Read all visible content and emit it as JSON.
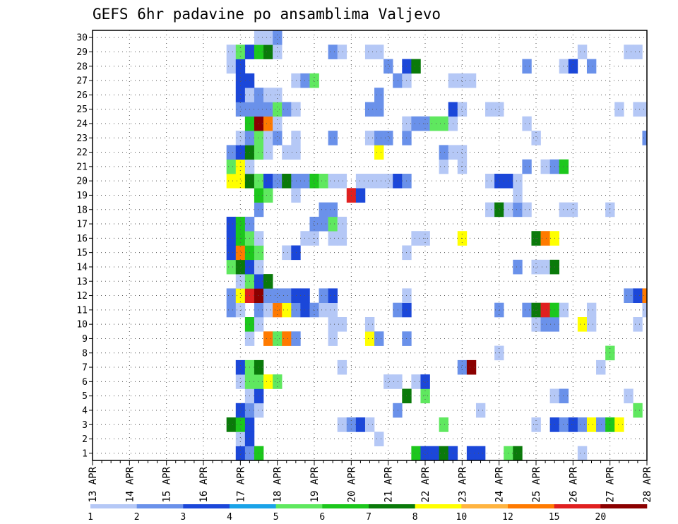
{
  "chart_data": {
    "type": "heatmap",
    "title": "GEFS 6hr padavine po ansamblima Valjevo",
    "x_tick_labels": [
      "13 APR",
      "14 APR",
      "15 APR",
      "16 APR",
      "17 APR",
      "18 APR",
      "19 APR",
      "20 APR",
      "21 APR",
      "22 APR",
      "23 APR",
      "24 APR",
      "25 APR",
      "26 APR",
      "27 APR",
      "28 APR"
    ],
    "y_tick_labels": [
      "1",
      "2",
      "3",
      "4",
      "5",
      "6",
      "7",
      "8",
      "9",
      "10",
      "11",
      "12",
      "13",
      "14",
      "15",
      "16",
      "17",
      "18",
      "19",
      "20",
      "21",
      "22",
      "23",
      "24",
      "25",
      "26",
      "27",
      "28",
      "29",
      "30"
    ],
    "x_range_steps": [
      0,
      60
    ],
    "y_range_members": [
      0.5,
      30.5
    ],
    "grid": "dotted",
    "colorbar": {
      "labels": [
        "1",
        "2",
        "3",
        "4",
        "5",
        "6",
        "7",
        "8",
        "10",
        "12",
        "15",
        "20"
      ],
      "colors": [
        "#b5c8f6",
        "#6a91ea",
        "#1b47d9",
        "#1aa3e8",
        "#5fe85f",
        "#1cc71c",
        "#0a7a0a",
        "#ffff00",
        "#ffb440",
        "#ff7a00",
        "#e02020",
        "#8b0000"
      ]
    },
    "cells": [
      [
        16,
        1,
        3
      ],
      [
        17,
        1,
        2
      ],
      [
        18,
        1,
        6
      ],
      [
        35,
        1,
        6
      ],
      [
        36,
        1,
        3
      ],
      [
        37,
        1,
        3
      ],
      [
        38,
        1,
        7
      ],
      [
        39,
        1,
        3
      ],
      [
        41,
        1,
        3
      ],
      [
        42,
        1,
        3
      ],
      [
        45,
        1,
        5
      ],
      [
        46,
        1,
        7
      ],
      [
        53,
        1,
        1
      ],
      [
        16,
        2,
        1
      ],
      [
        17,
        2,
        3
      ],
      [
        31,
        2,
        1
      ],
      [
        15,
        3,
        7
      ],
      [
        16,
        3,
        6
      ],
      [
        17,
        3,
        3
      ],
      [
        27,
        3,
        1
      ],
      [
        28,
        3,
        2
      ],
      [
        29,
        3,
        3
      ],
      [
        30,
        3,
        1
      ],
      [
        38,
        3,
        5
      ],
      [
        48,
        3,
        1
      ],
      [
        50,
        3,
        3
      ],
      [
        51,
        3,
        2
      ],
      [
        52,
        3,
        3
      ],
      [
        53,
        3,
        2
      ],
      [
        54,
        3,
        8
      ],
      [
        55,
        3,
        2
      ],
      [
        56,
        3,
        6
      ],
      [
        57,
        3,
        8
      ],
      [
        16,
        4,
        3
      ],
      [
        17,
        4,
        2
      ],
      [
        18,
        4,
        1
      ],
      [
        33,
        4,
        2
      ],
      [
        42,
        4,
        1
      ],
      [
        59,
        4,
        5
      ],
      [
        17,
        5,
        1
      ],
      [
        18,
        5,
        3
      ],
      [
        34,
        5,
        7
      ],
      [
        36,
        5,
        5
      ],
      [
        50,
        5,
        1
      ],
      [
        51,
        5,
        2
      ],
      [
        58,
        5,
        1
      ],
      [
        16,
        6,
        1
      ],
      [
        17,
        6,
        5
      ],
      [
        18,
        6,
        5
      ],
      [
        19,
        6,
        8
      ],
      [
        20,
        6,
        5
      ],
      [
        32,
        6,
        1
      ],
      [
        33,
        6,
        1
      ],
      [
        35,
        6,
        1
      ],
      [
        36,
        6,
        3
      ],
      [
        16,
        7,
        3
      ],
      [
        17,
        7,
        5
      ],
      [
        18,
        7,
        7
      ],
      [
        27,
        7,
        1
      ],
      [
        40,
        7,
        2
      ],
      [
        41,
        7,
        12
      ],
      [
        55,
        7,
        1
      ],
      [
        44,
        8,
        1
      ],
      [
        56,
        8,
        5
      ],
      [
        17,
        9,
        1
      ],
      [
        19,
        9,
        10
      ],
      [
        20,
        9,
        5
      ],
      [
        21,
        9,
        10
      ],
      [
        22,
        9,
        2
      ],
      [
        26,
        9,
        1
      ],
      [
        30,
        9,
        8
      ],
      [
        31,
        9,
        2
      ],
      [
        34,
        9,
        2
      ],
      [
        17,
        10,
        6
      ],
      [
        18,
        10,
        1
      ],
      [
        26,
        10,
        1
      ],
      [
        27,
        10,
        1
      ],
      [
        30,
        10,
        1
      ],
      [
        48,
        10,
        1
      ],
      [
        49,
        10,
        2
      ],
      [
        50,
        10,
        2
      ],
      [
        53,
        10,
        8
      ],
      [
        54,
        10,
        1
      ],
      [
        59,
        10,
        1
      ],
      [
        15,
        11,
        2
      ],
      [
        16,
        11,
        1
      ],
      [
        18,
        11,
        2
      ],
      [
        19,
        11,
        1
      ],
      [
        20,
        11,
        10
      ],
      [
        21,
        11,
        8
      ],
      [
        22,
        11,
        2
      ],
      [
        23,
        11,
        3
      ],
      [
        24,
        11,
        2
      ],
      [
        25,
        11,
        1
      ],
      [
        26,
        11,
        1
      ],
      [
        33,
        11,
        2
      ],
      [
        34,
        11,
        3
      ],
      [
        44,
        11,
        2
      ],
      [
        47,
        11,
        2
      ],
      [
        48,
        11,
        7
      ],
      [
        49,
        11,
        11
      ],
      [
        50,
        11,
        6
      ],
      [
        51,
        11,
        1
      ],
      [
        54,
        11,
        1
      ],
      [
        60,
        11,
        1
      ],
      [
        15,
        12,
        2
      ],
      [
        16,
        12,
        8
      ],
      [
        17,
        12,
        11
      ],
      [
        18,
        12,
        12
      ],
      [
        19,
        12,
        2
      ],
      [
        20,
        12,
        2
      ],
      [
        21,
        12,
        2
      ],
      [
        22,
        12,
        3
      ],
      [
        23,
        12,
        3
      ],
      [
        25,
        12,
        2
      ],
      [
        26,
        12,
        3
      ],
      [
        34,
        12,
        1
      ],
      [
        58,
        12,
        2
      ],
      [
        59,
        12,
        3
      ],
      [
        60,
        12,
        10
      ],
      [
        16,
        13,
        1
      ],
      [
        17,
        13,
        5
      ],
      [
        18,
        13,
        3
      ],
      [
        19,
        13,
        7
      ],
      [
        15,
        14,
        5
      ],
      [
        16,
        14,
        7
      ],
      [
        17,
        14,
        3
      ],
      [
        18,
        14,
        1
      ],
      [
        46,
        14,
        2
      ],
      [
        48,
        14,
        1
      ],
      [
        49,
        14,
        1
      ],
      [
        50,
        14,
        7
      ],
      [
        15,
        15,
        3
      ],
      [
        16,
        15,
        10
      ],
      [
        17,
        15,
        6
      ],
      [
        18,
        15,
        5
      ],
      [
        21,
        15,
        1
      ],
      [
        22,
        15,
        3
      ],
      [
        34,
        15,
        1
      ],
      [
        15,
        16,
        3
      ],
      [
        16,
        16,
        6
      ],
      [
        17,
        16,
        5
      ],
      [
        18,
        16,
        1
      ],
      [
        23,
        16,
        1
      ],
      [
        24,
        16,
        1
      ],
      [
        26,
        16,
        1
      ],
      [
        27,
        16,
        1
      ],
      [
        35,
        16,
        1
      ],
      [
        36,
        16,
        1
      ],
      [
        40,
        16,
        8
      ],
      [
        48,
        16,
        7
      ],
      [
        49,
        16,
        10
      ],
      [
        50,
        16,
        8
      ],
      [
        15,
        17,
        3
      ],
      [
        16,
        17,
        6
      ],
      [
        17,
        17,
        2
      ],
      [
        24,
        17,
        2
      ],
      [
        25,
        17,
        2
      ],
      [
        26,
        17,
        5
      ],
      [
        27,
        17,
        1
      ],
      [
        18,
        18,
        2
      ],
      [
        25,
        18,
        2
      ],
      [
        26,
        18,
        2
      ],
      [
        43,
        18,
        1
      ],
      [
        44,
        18,
        7
      ],
      [
        45,
        18,
        1
      ],
      [
        46,
        18,
        2
      ],
      [
        47,
        18,
        1
      ],
      [
        51,
        18,
        1
      ],
      [
        52,
        18,
        1
      ],
      [
        56,
        18,
        1
      ],
      [
        18,
        19,
        6
      ],
      [
        19,
        19,
        5
      ],
      [
        22,
        19,
        1
      ],
      [
        28,
        19,
        11
      ],
      [
        29,
        19,
        3
      ],
      [
        46,
        19,
        1
      ],
      [
        15,
        20,
        8
      ],
      [
        16,
        20,
        8
      ],
      [
        17,
        20,
        7
      ],
      [
        18,
        20,
        5
      ],
      [
        19,
        20,
        3
      ],
      [
        20,
        20,
        2
      ],
      [
        21,
        20,
        7
      ],
      [
        22,
        20,
        2
      ],
      [
        23,
        20,
        2
      ],
      [
        24,
        20,
        6
      ],
      [
        25,
        20,
        5
      ],
      [
        26,
        20,
        1
      ],
      [
        27,
        20,
        1
      ],
      [
        29,
        20,
        1
      ],
      [
        30,
        20,
        1
      ],
      [
        31,
        20,
        1
      ],
      [
        32,
        20,
        1
      ],
      [
        33,
        20,
        3
      ],
      [
        34,
        20,
        2
      ],
      [
        43,
        20,
        1
      ],
      [
        44,
        20,
        3
      ],
      [
        45,
        20,
        3
      ],
      [
        46,
        20,
        1
      ],
      [
        15,
        21,
        5
      ],
      [
        16,
        21,
        8
      ],
      [
        17,
        21,
        1
      ],
      [
        38,
        21,
        1
      ],
      [
        40,
        21,
        1
      ],
      [
        47,
        21,
        2
      ],
      [
        49,
        21,
        1
      ],
      [
        50,
        21,
        2
      ],
      [
        51,
        21,
        6
      ],
      [
        15,
        22,
        2
      ],
      [
        16,
        22,
        3
      ],
      [
        17,
        22,
        7
      ],
      [
        18,
        22,
        5
      ],
      [
        19,
        22,
        1
      ],
      [
        21,
        22,
        1
      ],
      [
        22,
        22,
        1
      ],
      [
        31,
        22,
        8
      ],
      [
        38,
        22,
        2
      ],
      [
        39,
        22,
        1
      ],
      [
        40,
        22,
        1
      ],
      [
        16,
        23,
        1
      ],
      [
        17,
        23,
        2
      ],
      [
        18,
        23,
        5
      ],
      [
        19,
        23,
        1
      ],
      [
        20,
        23,
        2
      ],
      [
        22,
        23,
        1
      ],
      [
        26,
        23,
        2
      ],
      [
        30,
        23,
        1
      ],
      [
        31,
        23,
        2
      ],
      [
        32,
        23,
        2
      ],
      [
        34,
        23,
        2
      ],
      [
        48,
        23,
        1
      ],
      [
        60,
        23,
        2
      ],
      [
        17,
        24,
        6
      ],
      [
        18,
        24,
        12
      ],
      [
        19,
        24,
        10
      ],
      [
        20,
        24,
        1
      ],
      [
        34,
        24,
        1
      ],
      [
        35,
        24,
        2
      ],
      [
        36,
        24,
        2
      ],
      [
        37,
        24,
        5
      ],
      [
        38,
        24,
        5
      ],
      [
        39,
        24,
        1
      ],
      [
        47,
        24,
        1
      ],
      [
        16,
        25,
        2
      ],
      [
        17,
        25,
        2
      ],
      [
        18,
        25,
        2
      ],
      [
        19,
        25,
        2
      ],
      [
        20,
        25,
        5
      ],
      [
        21,
        25,
        2
      ],
      [
        22,
        25,
        1
      ],
      [
        30,
        25,
        2
      ],
      [
        31,
        25,
        2
      ],
      [
        39,
        25,
        3
      ],
      [
        40,
        25,
        1
      ],
      [
        43,
        25,
        1
      ],
      [
        44,
        25,
        1
      ],
      [
        57,
        25,
        1
      ],
      [
        59,
        25,
        1
      ],
      [
        60,
        25,
        1
      ],
      [
        16,
        26,
        3
      ],
      [
        17,
        26,
        1
      ],
      [
        18,
        26,
        2
      ],
      [
        19,
        26,
        1
      ],
      [
        20,
        26,
        1
      ],
      [
        31,
        26,
        2
      ],
      [
        16,
        27,
        3
      ],
      [
        17,
        27,
        3
      ],
      [
        22,
        27,
        1
      ],
      [
        23,
        27,
        2
      ],
      [
        24,
        27,
        5
      ],
      [
        33,
        27,
        2
      ],
      [
        34,
        27,
        1
      ],
      [
        39,
        27,
        1
      ],
      [
        40,
        27,
        1
      ],
      [
        41,
        27,
        1
      ],
      [
        15,
        28,
        1
      ],
      [
        16,
        28,
        3
      ],
      [
        32,
        28,
        2
      ],
      [
        34,
        28,
        3
      ],
      [
        35,
        28,
        7
      ],
      [
        47,
        28,
        2
      ],
      [
        51,
        28,
        1
      ],
      [
        52,
        28,
        3
      ],
      [
        54,
        28,
        2
      ],
      [
        15,
        29,
        1
      ],
      [
        16,
        29,
        5
      ],
      [
        17,
        29,
        3
      ],
      [
        18,
        29,
        6
      ],
      [
        19,
        29,
        7
      ],
      [
        20,
        29,
        1
      ],
      [
        26,
        29,
        2
      ],
      [
        27,
        29,
        1
      ],
      [
        30,
        29,
        1
      ],
      [
        31,
        29,
        1
      ],
      [
        53,
        29,
        1
      ],
      [
        58,
        29,
        1
      ],
      [
        59,
        29,
        1
      ],
      [
        18,
        30,
        1
      ],
      [
        19,
        30,
        1
      ],
      [
        20,
        30,
        2
      ]
    ],
    "cells_note": "[step index 0-60 (6h steps from 13 APR 00Z), ensemble member 1-30, color class 1-12]"
  }
}
